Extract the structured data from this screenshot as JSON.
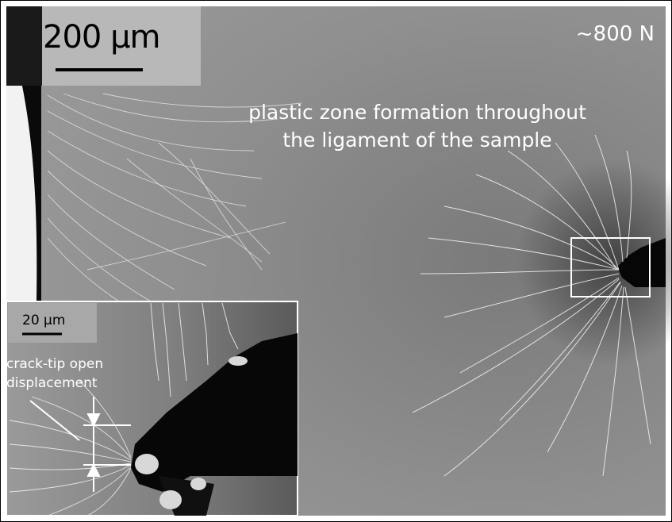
{
  "scale_bar_main": "200 μm",
  "load_label": "~800 N",
  "annotation": {
    "line1": "plastic zone formation throughout",
    "line2": "the ligament of the sample"
  },
  "inset": {
    "scale_bar": "20 μm",
    "label_line1": "crack-tip open",
    "label_line2": "displacement"
  },
  "colors": {
    "background_gray": "#8e8e8e",
    "frame": "#ffffff",
    "crack": "#000000",
    "slip_lines": "#f4f4f4"
  }
}
